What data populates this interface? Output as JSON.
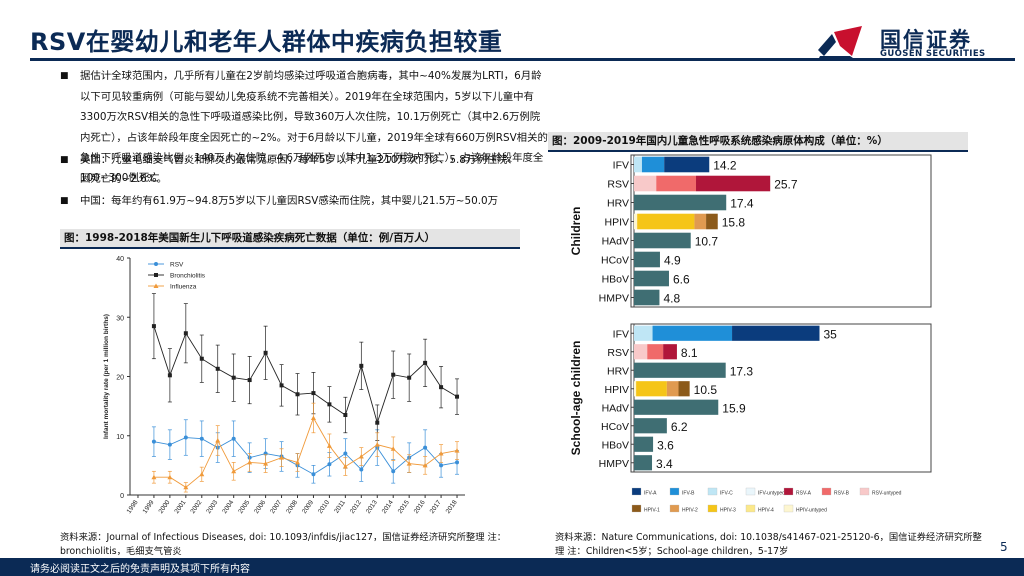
{
  "header": {
    "title": "RSV在婴幼儿和老年人群体中疾病负担较重",
    "logo_cn": "国信证券",
    "logo_en": "GUOSEN SECURITIES"
  },
  "bullets": {
    "mark": "■",
    "b1": "据估计全球范围内，几乎所有儿童在2岁前均感染过呼吸道合胞病毒，其中~40%发展为LRTI，6月龄以下可见较重病例（可能与婴幼儿免疫系统不完善相关）。2019年在全球范围内，5岁以下儿童中有3300万次RSV相关的急性下呼吸道感染比例，导致360万人次住院，10.1万例死亡（其中2.6万例院内死亡），占该年龄段年度全因死亡的~2%。对于6月龄以下儿童，2019年全球有660万例RSV相关的急性下呼吸道感染比例，140万人次住院，4.6万例死亡（其中1.3万例院内死亡），占该年龄段年度全因死亡的~2.6%。",
    "b2": "美国：儿童毛细支气管炎和肺炎的最常见原因，每年5岁以下儿童210万次门诊、5.8万例住院、100~300例死亡",
    "b3": "中国：每年约有61.9万~94.8万5岁以下儿童因RSV感染而住院，其中婴儿21.5万~50.0万"
  },
  "left_chart_caption": "图：1998-2018年美国新生儿下呼吸道感染疾病死亡数据（单位：例/百万人）",
  "right_chart_caption": "图：2009-2019年国内儿童急性呼吸系统感染病原体构成（单位：%）",
  "left_source": "资料来源：Journal of Infectious Diseases, doi: 10.1093/infdis/jiac127，国信证券经济研究所整理 注：bronchiolitis，毛细支气管炎",
  "right_source": "资料来源：Nature Communications, doi: 10.1038/s41467-021-25120-6，国信证券经济研究所整理 注：Children<5岁；School-age children，5-17岁",
  "footer": "请务必阅读正文之后的免责声明及其项下所有内容",
  "page_number": "5",
  "colors": {
    "navy": "#0b2a55",
    "rsv": "#3a8fd8",
    "bronch": "#222222",
    "influenza": "#f09a3a",
    "bar_teal": "#3f6e73"
  },
  "chart_data": [
    {
      "type": "line",
      "ylabel": "Infant mortality rate (per 1 million births)",
      "ylim": [
        0,
        40
      ],
      "yticks": [
        "0",
        "10",
        "20",
        "30",
        "40"
      ],
      "x": [
        "1998",
        "1999",
        "2000",
        "2001",
        "2002",
        "2003",
        "2004",
        "2005",
        "2006",
        "2007",
        "2008",
        "2009",
        "2010",
        "2011",
        "2012",
        "2013",
        "2014",
        "2015",
        "2016",
        "2017",
        "2018"
      ],
      "series": [
        {
          "name": "RSV",
          "color": "#3a8fd8",
          "marker": "circle",
          "values": [
            null,
            9.0,
            8.5,
            9.7,
            9.5,
            8.0,
            9.5,
            6.3,
            7.0,
            6.5,
            5.0,
            3.5,
            5.2,
            7.0,
            4.3,
            8.0,
            4.0,
            6.3,
            8.0,
            5.0,
            5.5
          ],
          "err": [
            null,
            2.5,
            2.5,
            3.0,
            3.0,
            2.5,
            3.0,
            2.5,
            2.5,
            2.5,
            2.0,
            1.5,
            2.0,
            2.5,
            2.0,
            3.0,
            2.0,
            2.5,
            3.0,
            2.0,
            2.0
          ]
        },
        {
          "name": "Bronchiolitis",
          "color": "#222222",
          "marker": "square",
          "values": [
            null,
            28.5,
            20.2,
            27.3,
            23.0,
            21.3,
            19.8,
            19.4,
            24.0,
            18.5,
            17.0,
            17.2,
            15.3,
            13.5,
            21.8,
            12.2,
            20.3,
            19.8,
            22.3,
            18.2,
            16.6
          ],
          "err": [
            null,
            5.5,
            4.5,
            5.0,
            4.0,
            4.0,
            4.0,
            4.0,
            4.5,
            3.5,
            3.5,
            3.5,
            3.0,
            3.0,
            4.0,
            3.0,
            4.0,
            4.0,
            4.0,
            3.5,
            3.0
          ]
        },
        {
          "name": "Influenza",
          "color": "#f09a3a",
          "marker": "triangle",
          "values": [
            null,
            3.0,
            3.0,
            1.3,
            3.5,
            9.2,
            4.0,
            5.5,
            5.3,
            6.3,
            5.5,
            13.0,
            8.3,
            4.8,
            6.5,
            8.5,
            7.8,
            5.3,
            5.0,
            7.0,
            7.5
          ],
          "err": [
            null,
            1.0,
            1.0,
            0.8,
            1.2,
            2.5,
            1.5,
            1.5,
            1.5,
            1.5,
            1.5,
            2.5,
            2.0,
            1.5,
            1.5,
            2.0,
            2.0,
            1.5,
            1.5,
            1.5,
            1.5
          ]
        }
      ]
    },
    {
      "type": "bar",
      "orientation": "horizontal",
      "stacked": true,
      "xlim": [
        0,
        50
      ],
      "groups": [
        {
          "name": "Children",
          "categories": [
            "IFV",
            "RSV",
            "HRV",
            "HPIV",
            "HAdV",
            "HCoV",
            "HBoV",
            "HMPV"
          ],
          "totals": [
            "14.2",
            "25.7",
            "17.4",
            "15.8",
            "10.7",
            "4.9",
            "6.6",
            "4.8"
          ],
          "segments": [
            [
              {
                "k": "IFV-C",
                "v": 1.5
              },
              {
                "k": "IFV-B",
                "v": 4.2
              },
              {
                "k": "IFV-A",
                "v": 8.5
              }
            ],
            [
              {
                "k": "RSV-untyped",
                "v": 4.2
              },
              {
                "k": "RSV-B",
                "v": 7.5
              },
              {
                "k": "RSV-A",
                "v": 14.0
              }
            ],
            [
              {
                "k": "HRV",
                "v": 17.4
              }
            ],
            [
              {
                "k": "HPIV-untyped",
                "v": 0.6
              },
              {
                "k": "HPIV-3",
                "v": 10.8
              },
              {
                "k": "HPIV-2",
                "v": 2.2
              },
              {
                "k": "HPIV-1",
                "v": 2.2
              }
            ],
            [
              {
                "k": "HAdV",
                "v": 10.7
              }
            ],
            [
              {
                "k": "HCoV",
                "v": 4.9
              }
            ],
            [
              {
                "k": "HBoV",
                "v": 6.6
              }
            ],
            [
              {
                "k": "HMPV",
                "v": 4.8
              }
            ]
          ]
        },
        {
          "name": "School-age children",
          "categories": [
            "IFV",
            "RSV",
            "HRV",
            "HPIV",
            "HAdV",
            "HCoV",
            "HBoV",
            "HMPV"
          ],
          "totals": [
            "35",
            "8.1",
            "17.3",
            "10.5",
            "15.9",
            "6.2",
            "3.6",
            "3.4"
          ],
          "segments": [
            [
              {
                "k": "IFV-C",
                "v": 3.5
              },
              {
                "k": "IFV-B",
                "v": 15.0
              },
              {
                "k": "IFV-A",
                "v": 16.5
              }
            ],
            [
              {
                "k": "RSV-untyped",
                "v": 2.5
              },
              {
                "k": "RSV-B",
                "v": 3.0
              },
              {
                "k": "RSV-A",
                "v": 2.6
              }
            ],
            [
              {
                "k": "HRV",
                "v": 17.3
              }
            ],
            [
              {
                "k": "HPIV-untyped",
                "v": 0.4
              },
              {
                "k": "HPIV-3",
                "v": 5.8
              },
              {
                "k": "HPIV-2",
                "v": 2.2
              },
              {
                "k": "HPIV-1",
                "v": 2.1
              }
            ],
            [
              {
                "k": "HAdV",
                "v": 15.9
              }
            ],
            [
              {
                "k": "HCoV",
                "v": 6.2
              }
            ],
            [
              {
                "k": "HBoV",
                "v": 3.6
              }
            ],
            [
              {
                "k": "HMPV",
                "v": 3.4
              }
            ]
          ]
        }
      ],
      "legend": [
        {
          "k": "IFV-A",
          "label": "IFV-A",
          "color": "#0b3c7d"
        },
        {
          "k": "IFV-B",
          "label": "IFV-B",
          "color": "#1f8fd8"
        },
        {
          "k": "IFV-C",
          "label": "IFV-C",
          "color": "#bfe6f5"
        },
        {
          "k": "IFV-untyped",
          "label": "IFV-untyped",
          "color": "#eaf6fb"
        },
        {
          "k": "RSV-A",
          "label": "RSV-A",
          "color": "#b0163a"
        },
        {
          "k": "RSV-B",
          "label": "RSV-B",
          "color": "#f06a6a"
        },
        {
          "k": "RSV-untyped",
          "label": "RSV-untyped",
          "color": "#f8c9c9"
        },
        {
          "k": "HPIV-1",
          "label": "HPIV-1",
          "color": "#8c5a1a"
        },
        {
          "k": "HPIV-2",
          "label": "HPIV-2",
          "color": "#e09a50"
        },
        {
          "k": "HPIV-3",
          "label": "HPIV-3",
          "color": "#f5c518"
        },
        {
          "k": "HPIV-4",
          "label": "HPIV-4",
          "color": "#fbe88a"
        },
        {
          "k": "HPIV-untyped",
          "label": "HPIV-untyped",
          "color": "#fdf6d0"
        }
      ]
    }
  ]
}
